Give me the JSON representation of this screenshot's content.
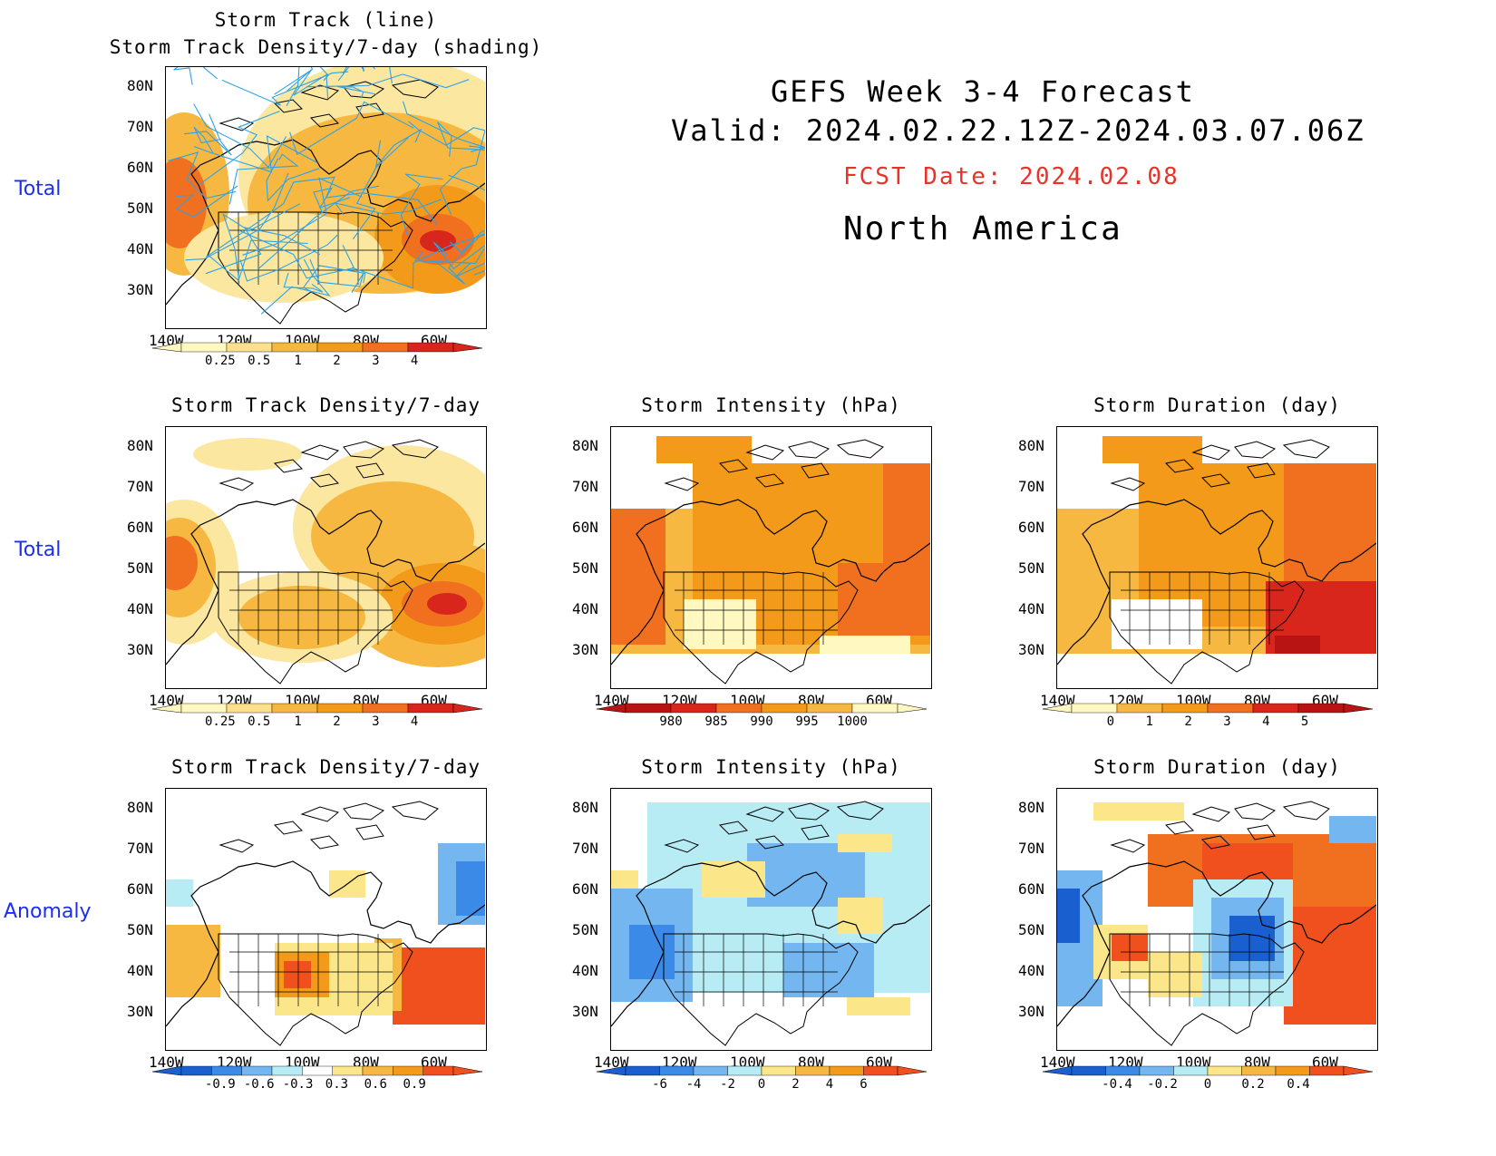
{
  "header": {
    "line1": "GEFS Week 3-4 Forecast",
    "line2": "Valid: 2024.02.22.12Z-2024.03.07.06Z",
    "fcst": "FCST Date: 2024.02.08",
    "region": "North America",
    "fcst_color": "#e8322a"
  },
  "row_labels": {
    "r1": "Total",
    "r2": "Total",
    "r3": "Anomaly"
  },
  "axis": {
    "lat": [
      "80N",
      "70N",
      "60N",
      "50N",
      "40N",
      "30N"
    ],
    "lon": [
      "140W",
      "120W",
      "100W",
      "80W",
      "60W"
    ]
  },
  "panels": [
    {
      "id": "p1",
      "title": "Storm Track (line)",
      "title2": "Storm Track Density/7-day (shading)",
      "colorbar": {
        "labels": [
          "0.25",
          "0.5",
          "1",
          "2",
          "3",
          "4"
        ],
        "colors": [
          "#fff8c0",
          "#fce08a",
          "#f6b840",
          "#f39a1a",
          "#f07020",
          "#d8261c"
        ]
      }
    },
    {
      "id": "p2",
      "title": "Storm Track Density/7-day",
      "colorbar": {
        "labels": [
          "0.25",
          "0.5",
          "1",
          "2",
          "3",
          "4"
        ],
        "colors": [
          "#fff8c0",
          "#fce08a",
          "#f6b840",
          "#f39a1a",
          "#f07020",
          "#d8261c"
        ]
      }
    },
    {
      "id": "p3",
      "title": "Storm Intensity (hPa)",
      "colorbar": {
        "labels": [
          "980",
          "985",
          "990",
          "995",
          "1000"
        ],
        "colors": [
          "#b81414",
          "#d8261c",
          "#f07020",
          "#f39a1a",
          "#f6b840",
          "#fff8c0"
        ]
      }
    },
    {
      "id": "p4",
      "title": "Storm Duration (day)",
      "colorbar": {
        "labels": [
          "0",
          "1",
          "2",
          "3",
          "4",
          "5"
        ],
        "colors": [
          "#fff8c0",
          "#f6b840",
          "#f39a1a",
          "#f07020",
          "#d8261c",
          "#b81414"
        ]
      }
    },
    {
      "id": "p5",
      "title": "Storm Track Density/7-day",
      "colorbar": {
        "labels": [
          "-0.9",
          "-0.6",
          "-0.3",
          "0.3",
          "0.6",
          "0.9"
        ],
        "colors": [
          "#1a5fd0",
          "#3c8ae8",
          "#74b7f0",
          "#b8ecf5",
          "#ffffff",
          "#fbe78a",
          "#f6b840",
          "#f39a1a",
          "#f0501e"
        ]
      }
    },
    {
      "id": "p6",
      "title": "Storm Intensity (hPa)",
      "colorbar": {
        "labels": [
          "-6",
          "-4",
          "-2",
          "0",
          "2",
          "4",
          "6"
        ],
        "colors": [
          "#1a5fd0",
          "#3c8ae8",
          "#74b7f0",
          "#b8ecf5",
          "#fbe78a",
          "#f6b840",
          "#f39a1a",
          "#f0501e"
        ]
      }
    },
    {
      "id": "p7",
      "title": "Storm Duration (day)",
      "colorbar": {
        "labels": [
          "-0.4",
          "-0.2",
          "0",
          "0.2",
          "0.4"
        ],
        "colors": [
          "#1a5fd0",
          "#3c8ae8",
          "#74b7f0",
          "#b8ecf5",
          "#fbe78a",
          "#f6b840",
          "#f39a1a",
          "#f0501e"
        ]
      }
    }
  ]
}
